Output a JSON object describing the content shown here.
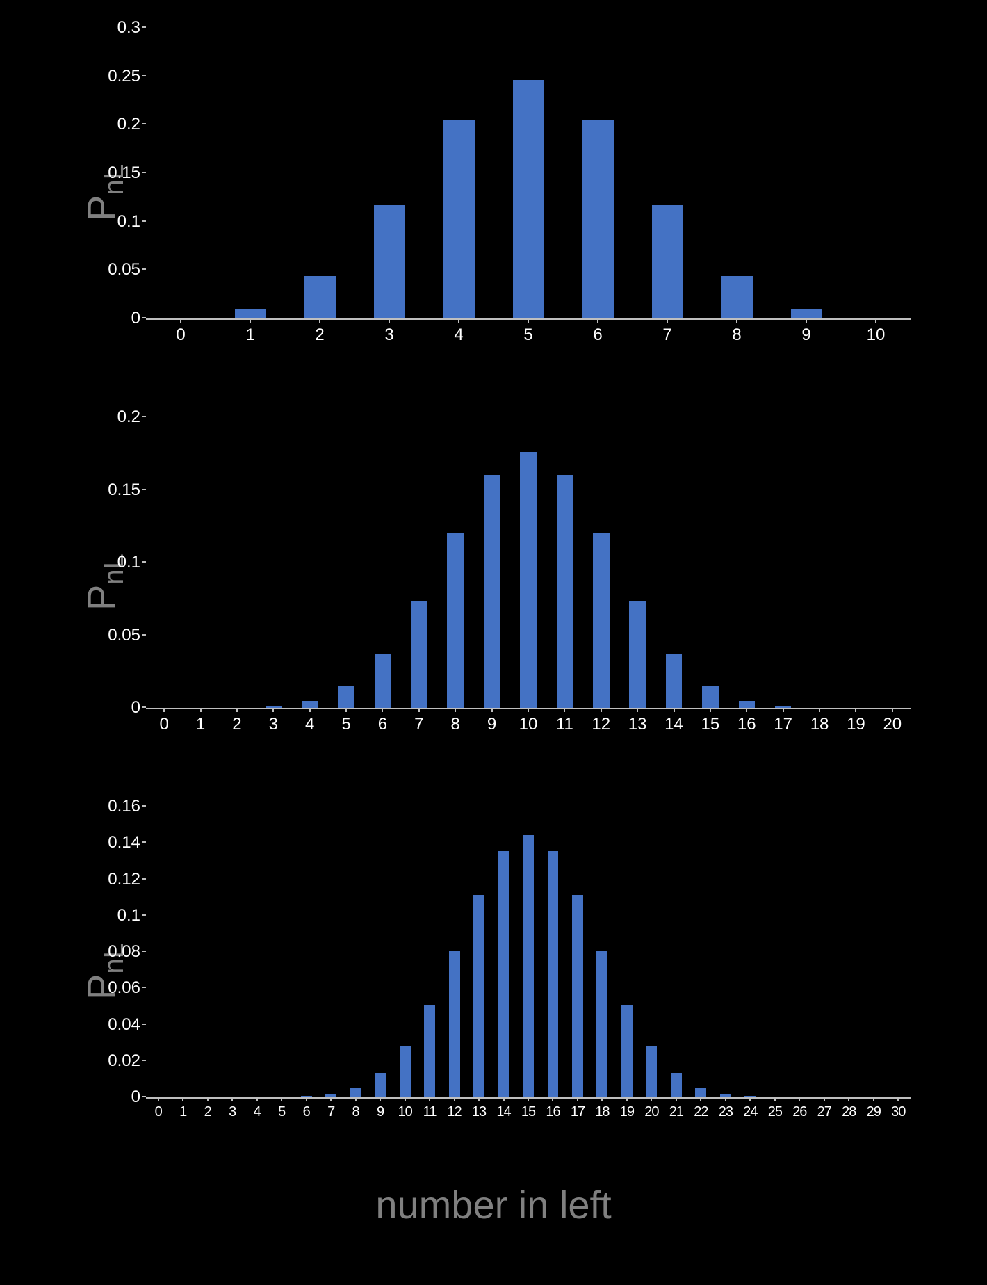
{
  "background_color": "#000000",
  "bar_color": "#4472c4",
  "axis_color": "#bfbfbf",
  "tick_text_color": "#ffffff",
  "label_text_color": "#808080",
  "y_label_main": "P",
  "y_label_sub": "nL",
  "x_label": "number in left",
  "y_label_fontsize": 56,
  "x_label_fontsize": 56,
  "tick_fontsize": 24,
  "charts": [
    {
      "type": "bar",
      "ylim": [
        0,
        0.3
      ],
      "y_ticks": [
        0,
        0.05,
        0.1,
        0.15,
        0.2,
        0.25,
        0.3
      ],
      "x_ticks": [
        0,
        1,
        2,
        3,
        4,
        5,
        6,
        7,
        8,
        9,
        10
      ],
      "categories": [
        0,
        1,
        2,
        3,
        4,
        5,
        6,
        7,
        8,
        9,
        10
      ],
      "values": [
        0.001,
        0.01,
        0.044,
        0.117,
        0.205,
        0.246,
        0.205,
        0.117,
        0.044,
        0.01,
        0.001
      ],
      "bar_width": 0.45,
      "x_tick_fontsize": 24
    },
    {
      "type": "bar",
      "ylim": [
        0,
        0.2
      ],
      "y_ticks": [
        0,
        0.05,
        0.1,
        0.15,
        0.2
      ],
      "x_ticks": [
        0,
        1,
        2,
        3,
        4,
        5,
        6,
        7,
        8,
        9,
        10,
        11,
        12,
        13,
        14,
        15,
        16,
        17,
        18,
        19,
        20
      ],
      "categories": [
        0,
        1,
        2,
        3,
        4,
        5,
        6,
        7,
        8,
        9,
        10,
        11,
        12,
        13,
        14,
        15,
        16,
        17,
        18,
        19,
        20
      ],
      "values": [
        1e-06,
        2e-05,
        0.0002,
        0.0011,
        0.0046,
        0.0148,
        0.037,
        0.0739,
        0.1201,
        0.1602,
        0.1762,
        0.1602,
        0.1201,
        0.0739,
        0.037,
        0.0148,
        0.0046,
        0.0011,
        0.0002,
        2e-05,
        1e-06
      ],
      "bar_width": 0.45,
      "x_tick_fontsize": 24
    },
    {
      "type": "bar",
      "ylim": [
        0,
        0.16
      ],
      "y_ticks": [
        0,
        0.02,
        0.04,
        0.06,
        0.08,
        0.1,
        0.12,
        0.14,
        0.16
      ],
      "x_ticks": [
        0,
        1,
        2,
        3,
        4,
        5,
        6,
        7,
        8,
        9,
        10,
        11,
        12,
        13,
        14,
        15,
        16,
        17,
        18,
        19,
        20,
        21,
        22,
        23,
        24,
        25,
        26,
        27,
        28,
        29,
        30
      ],
      "categories": [
        0,
        1,
        2,
        3,
        4,
        5,
        6,
        7,
        8,
        9,
        10,
        11,
        12,
        13,
        14,
        15,
        16,
        17,
        18,
        19,
        20,
        21,
        22,
        23,
        24,
        25,
        26,
        27,
        28,
        29,
        30
      ],
      "values": [
        0,
        0,
        0,
        0,
        0,
        0,
        0.0006,
        0.0019,
        0.0055,
        0.0133,
        0.028,
        0.0509,
        0.0806,
        0.1115,
        0.1354,
        0.1445,
        0.1354,
        0.1115,
        0.0806,
        0.0509,
        0.028,
        0.0133,
        0.0055,
        0.0019,
        0.0006,
        0,
        0,
        0,
        0,
        0,
        0
      ],
      "bar_width": 0.45,
      "x_tick_fontsize": 20
    }
  ]
}
